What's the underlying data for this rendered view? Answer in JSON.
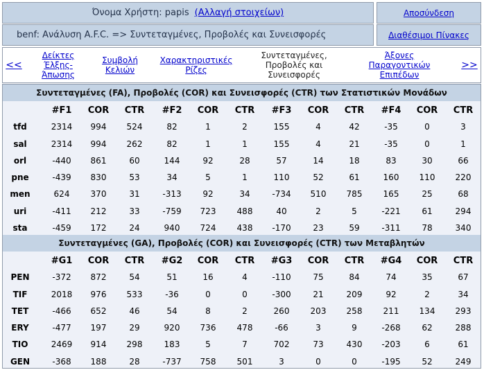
{
  "header": {
    "user_label": "Όνομα Χρήστη: papis",
    "change_details": "(Αλλαγή στοιχείων)",
    "logout": "Αποσύνδεση",
    "breadcrumb": "benf: Ανάλυση A.F.C. => Συντεταγμένες, Προβολές και Συνεισφορές",
    "available_tables": "Διαθέσιμοι Πίνακες"
  },
  "nav": {
    "prev": "<<",
    "next": ">>",
    "items": [
      {
        "label": "Δείκτες Έλξης-Άπωσης"
      },
      {
        "label": "Συμβολή Κελιών"
      },
      {
        "label": "Χαρακτηριστικές Ρίζες"
      },
      {
        "label": "Συντεταγμένες, Προβολές και Συνεισφορές"
      },
      {
        "label": "Άξονες Παραγοντικών Επιπέδων"
      }
    ]
  },
  "fa_section": {
    "title": "Συντεταγμένες (FA), Προβολές (COR) και Συνεισφορές (CTR) των Στατιστικών Μονάδων",
    "columns": [
      "",
      "#F1",
      "COR",
      "CTR",
      "#F2",
      "COR",
      "CTR",
      "#F3",
      "COR",
      "CTR",
      "#F4",
      "COR",
      "CTR"
    ],
    "rows": [
      [
        "tfd",
        "2314",
        "994",
        "524",
        "82",
        "1",
        "2",
        "155",
        "4",
        "42",
        "-35",
        "0",
        "3"
      ],
      [
        "sal",
        "2314",
        "994",
        "262",
        "82",
        "1",
        "1",
        "155",
        "4",
        "21",
        "-35",
        "0",
        "1"
      ],
      [
        "orl",
        "-440",
        "861",
        "60",
        "144",
        "92",
        "28",
        "57",
        "14",
        "18",
        "83",
        "30",
        "66"
      ],
      [
        "pne",
        "-439",
        "830",
        "53",
        "34",
        "5",
        "1",
        "110",
        "52",
        "61",
        "160",
        "110",
        "220"
      ],
      [
        "men",
        "624",
        "370",
        "31",
        "-313",
        "92",
        "34",
        "-734",
        "510",
        "785",
        "165",
        "25",
        "68"
      ],
      [
        "uri",
        "-411",
        "212",
        "33",
        "-759",
        "723",
        "488",
        "40",
        "2",
        "5",
        "-221",
        "61",
        "294"
      ],
      [
        "sta",
        "-459",
        "172",
        "24",
        "940",
        "724",
        "438",
        "-170",
        "23",
        "59",
        "-311",
        "78",
        "340"
      ]
    ]
  },
  "ga_section": {
    "title": "Συντεταγμένες (GA), Προβολές (COR) και Συνεισφορές (CTR) των Μεταβλητών",
    "columns": [
      "",
      "#G1",
      "COR",
      "CTR",
      "#G2",
      "COR",
      "CTR",
      "#G3",
      "COR",
      "CTR",
      "#G4",
      "COR",
      "CTR"
    ],
    "rows": [
      [
        "PEN",
        "-372",
        "872",
        "54",
        "51",
        "16",
        "4",
        "-110",
        "75",
        "84",
        "74",
        "35",
        "67"
      ],
      [
        "TIF",
        "2018",
        "976",
        "533",
        "-36",
        "0",
        "0",
        "-300",
        "21",
        "209",
        "92",
        "2",
        "34"
      ],
      [
        "TET",
        "-466",
        "652",
        "46",
        "54",
        "8",
        "2",
        "260",
        "203",
        "258",
        "211",
        "134",
        "293"
      ],
      [
        "ERY",
        "-477",
        "197",
        "29",
        "920",
        "736",
        "478",
        "-66",
        "3",
        "9",
        "-268",
        "62",
        "288"
      ],
      [
        "TIO",
        "2469",
        "914",
        "298",
        "183",
        "5",
        "7",
        "702",
        "73",
        "430",
        "-203",
        "6",
        "61"
      ],
      [
        "GEN",
        "-368",
        "188",
        "28",
        "-737",
        "758",
        "501",
        "3",
        "0",
        "0",
        "-195",
        "52",
        "249"
      ]
    ]
  }
}
